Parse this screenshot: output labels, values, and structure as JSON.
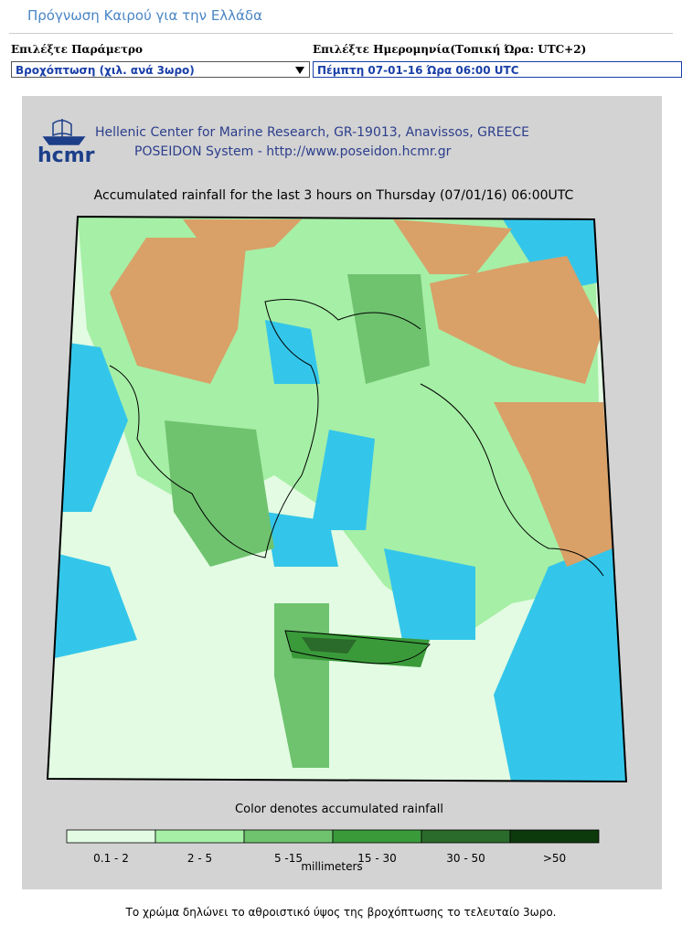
{
  "header": {
    "title": "Πρόγνωση Καιρού για την Ελλάδα"
  },
  "controls": {
    "parameter": {
      "label": "Επιλέξτε Παράμετρο",
      "value": "Βροχόπτωση (χιλ. ανά 3ωρο)"
    },
    "date": {
      "label": "Επιλέξτε Ημερομηνία(Τοπική Ώρα: UTC+2)",
      "value": "Πέμπτη 07-01-16 Ώρα 06:00 UTC"
    }
  },
  "map": {
    "logo": "hcmr",
    "org_line1": "Hellenic Center for Marine Research, GR-19013, Anavissos, GREECE",
    "org_line2": "POSEIDON System - http://www.poseidon.hcmr.gr",
    "title": "Accumulated rainfall for the last 3 hours on Thursday (07/01/16) 06:00UTC",
    "legend": {
      "title": "Color denotes accumulated rainfall",
      "bins": [
        {
          "label": "0.1 - 2",
          "color": "#e2fbe2"
        },
        {
          "label": "2 - 5",
          "color": "#a6efa6"
        },
        {
          "label": "5 -15",
          "color": "#6fc36f"
        },
        {
          "label": "15 - 30",
          "color": "#3a9a3a"
        },
        {
          "label": "30 - 50",
          "color": "#2a6a2a"
        },
        {
          "label": ">50",
          "color": "#0d3a0d"
        }
      ],
      "units": "millimeters"
    }
  },
  "footer": {
    "note": "Το χρώμα δηλώνει το αθροιστικό ύψος της βροχόπτωσης το τελευταίο 3ωρο."
  }
}
